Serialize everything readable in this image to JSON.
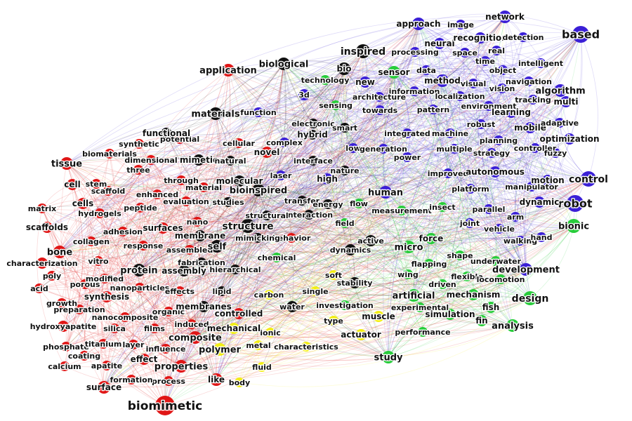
{
  "colors": {
    "red": "#e01616",
    "black": "#111111",
    "blue": "#3a1fd6",
    "green": "#27cc3a",
    "yellow": "#f2ee15"
  },
  "clusters": {
    "red": [
      "biomimetic",
      "surface",
      "like",
      "process",
      "formation",
      "calcium",
      "apatite",
      "coating",
      "phosphate",
      "titanium",
      "layer",
      "influence",
      "effect",
      "properties",
      "hydroxyapatite",
      "silica",
      "nanocomposite",
      "films",
      "induced",
      "organic",
      "growth",
      "preparation",
      "synthesis",
      "acid",
      "poly",
      "modified",
      "porous",
      "nanoparticles",
      "effects",
      "characterization",
      "vitro",
      "bone",
      "collagen",
      "response",
      "assembled",
      "scaffolds",
      "matrix",
      "cells",
      "hydrogels",
      "peptide",
      "adhesion",
      "surfaces",
      "cell",
      "stem",
      "scaffold",
      "enhanced",
      "evaluation",
      "tissue",
      "biomaterials",
      "dimensional",
      "three",
      "synthetic",
      "potential",
      "cellular",
      "through",
      "material",
      "application",
      "composite",
      "controlled",
      "novel",
      "behavior",
      "nano"
    ],
    "black": [
      "biological",
      "inspired",
      "bio",
      "materials",
      "functional",
      "mimetic",
      "natural",
      "molecular",
      "bioinspired",
      "studies",
      "structure",
      "membrane",
      "self",
      "protein",
      "assembly",
      "fabrication",
      "hierarchical",
      "lipid",
      "membranes",
      "water",
      "stability",
      "active",
      "dynamics",
      "interaction",
      "transfer",
      "structural",
      "electronic",
      "smart",
      "hybrid",
      "interface",
      "nature",
      "energy",
      "mimicking"
    ],
    "blue": [
      "based",
      "network",
      "image",
      "approach",
      "neural",
      "recognition",
      "detection",
      "processing",
      "space",
      "real",
      "time",
      "object",
      "intelligent",
      "new",
      "method",
      "data",
      "visual",
      "navigation",
      "information",
      "vision",
      "algorithm",
      "architecture",
      "localization",
      "tracking",
      "multi",
      "3d",
      "function",
      "towards",
      "pattern",
      "environment",
      "learning",
      "robust",
      "mobile",
      "adaptive",
      "integrated",
      "machine",
      "planning",
      "optimization",
      "complex",
      "low",
      "generation",
      "multiple",
      "strategy",
      "controller",
      "fuzzy",
      "power",
      "improved",
      "autonomous",
      "laser",
      "high",
      "human",
      "platform",
      "manipulator",
      "motion",
      "control",
      "robot",
      "dynamic",
      "parallel",
      "arm",
      "joint",
      "vehicle",
      "walking",
      "hand",
      "development"
    ],
    "green": [
      "sensor",
      "technology",
      "sensing",
      "flow",
      "measurement",
      "insect",
      "field",
      "bionic",
      "micro",
      "force",
      "shape",
      "underwater",
      "flapping",
      "wing",
      "flexible",
      "driven",
      "locomotion",
      "mechanism",
      "artificial",
      "investigation",
      "experimental",
      "fish",
      "simulation",
      "fin",
      "design",
      "analysis",
      "performance",
      "study",
      "chemical"
    ],
    "yellow": [
      "soft",
      "single",
      "carbon",
      "type",
      "muscle",
      "actuator",
      "ionic",
      "metal",
      "characteristics",
      "fluid",
      "body",
      "mechanical",
      "polymer"
    ]
  }
}
